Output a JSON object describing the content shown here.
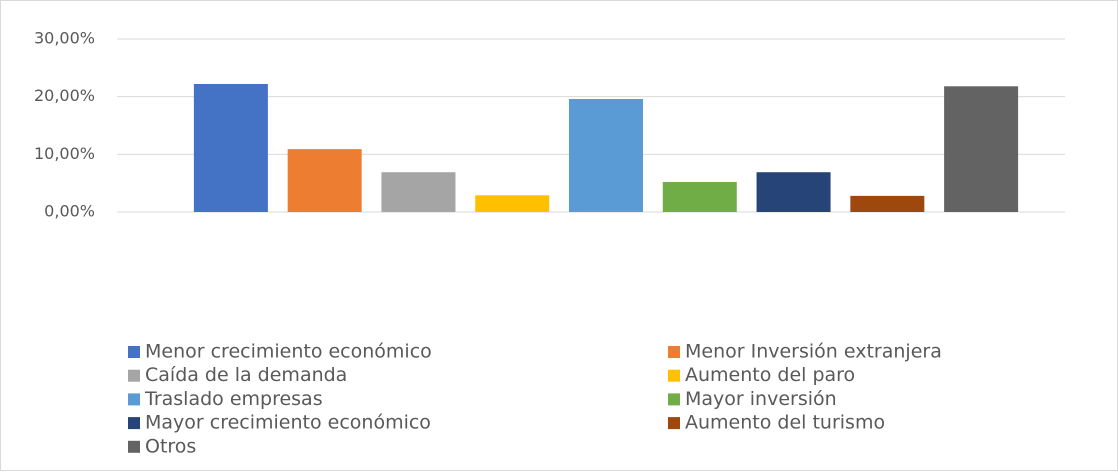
{
  "chart_data": {
    "type": "bar",
    "series": [
      {
        "name": "Menor crecimiento económico",
        "color": "#4472c4",
        "values": [
          22.2
        ]
      },
      {
        "name": "Menor Inversión extranjera",
        "color": "#ed7d31",
        "values": [
          10.9
        ]
      },
      {
        "name": "Caída de la demanda",
        "color": "#a5a5a5",
        "values": [
          6.9
        ]
      },
      {
        "name": "Aumento del paro",
        "color": "#ffc000",
        "values": [
          2.9
        ]
      },
      {
        "name": "Traslado empresas",
        "color": "#5b9bd5",
        "values": [
          19.6
        ]
      },
      {
        "name": "Mayor inversión",
        "color": "#70ad47",
        "values": [
          5.2
        ]
      },
      {
        "name": "Mayor crecimiento económico",
        "color": "#264478",
        "values": [
          6.9
        ]
      },
      {
        "name": "Aumento del turismo",
        "color": "#9e480e",
        "values": [
          2.8
        ]
      },
      {
        "name": "Otros",
        "color": "#636363",
        "values": [
          21.8
        ]
      }
    ],
    "ylim": [
      0,
      30
    ],
    "yticks": [
      {
        "value": 0,
        "label": "0,00%"
      },
      {
        "value": 10,
        "label": "10,00%"
      },
      {
        "value": 20,
        "label": "20,00%"
      },
      {
        "value": 30,
        "label": "30,00%"
      }
    ],
    "grid": true,
    "legend": "bottom"
  }
}
